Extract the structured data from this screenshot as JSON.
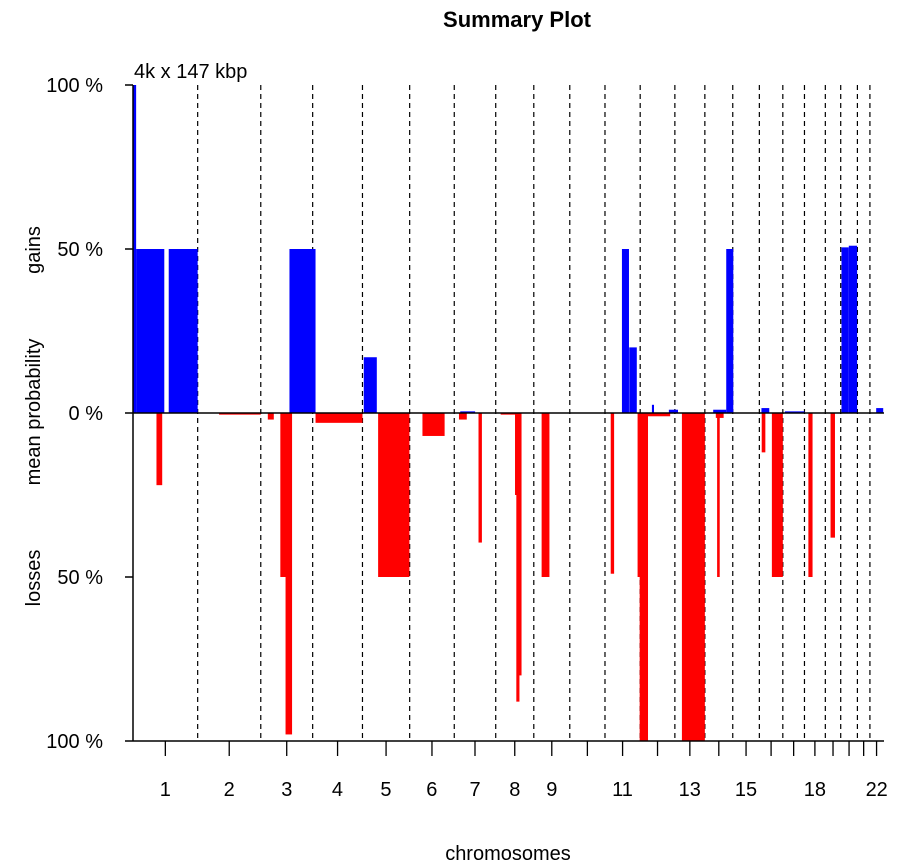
{
  "chart_data": {
    "type": "bar",
    "title": "Summary Plot",
    "annotation": "4k x 147 kbp",
    "xlabel": "chromosomes",
    "ylabel_parts": [
      "losses",
      "mean probability",
      "gains"
    ],
    "ylim": [
      -100,
      100
    ],
    "yticks": [
      {
        "value": 100,
        "label": "100 %"
      },
      {
        "value": 50,
        "label": "50 %"
      },
      {
        "value": 0,
        "label": "0 %"
      },
      {
        "value": -50,
        "label": "50 %"
      },
      {
        "value": -100,
        "label": "100 %"
      }
    ],
    "x_unit": "genome position (Mbp)",
    "xlim": [
      0,
      2880
    ],
    "chromosome_boundaries": [
      248,
      490,
      689,
      880,
      1061,
      1232,
      1391,
      1537,
      1675,
      1810,
      1945,
      2078,
      2193,
      2300,
      2402,
      2492,
      2575,
      2655,
      2714,
      2778,
      2826,
      2877
    ],
    "chromosome_labels": [
      {
        "label": "1",
        "pos": 124
      },
      {
        "label": "2",
        "pos": 369
      },
      {
        "label": "3",
        "pos": 590
      },
      {
        "label": "4",
        "pos": 784
      },
      {
        "label": "5",
        "pos": 970
      },
      {
        "label": "6",
        "pos": 1146
      },
      {
        "label": "7",
        "pos": 1312
      },
      {
        "label": "8",
        "pos": 1464
      },
      {
        "label": "9",
        "pos": 1606
      },
      {
        "label": "11",
        "pos": 1877
      },
      {
        "label": "13",
        "pos": 2135
      },
      {
        "label": "15",
        "pos": 2351
      },
      {
        "label": "18",
        "pos": 2615
      },
      {
        "label": "22",
        "pos": 2852
      }
    ],
    "series": [
      {
        "name": "gains",
        "color": "#0000ff",
        "segments": [
          {
            "start": 0,
            "end": 12,
            "value": 100
          },
          {
            "start": 12,
            "end": 120,
            "value": 50
          },
          {
            "start": 137,
            "end": 248,
            "value": 50
          },
          {
            "start": 600,
            "end": 700,
            "value": 50
          },
          {
            "start": 885,
            "end": 935,
            "value": 17
          },
          {
            "start": 1255,
            "end": 1312,
            "value": 0.5
          },
          {
            "start": 1875,
            "end": 1902,
            "value": 50
          },
          {
            "start": 1903,
            "end": 1932,
            "value": 20
          },
          {
            "start": 1990,
            "end": 1998,
            "value": 2.5
          },
          {
            "start": 2055,
            "end": 2090,
            "value": 1
          },
          {
            "start": 2225,
            "end": 2275,
            "value": 1
          },
          {
            "start": 2275,
            "end": 2302,
            "value": 50
          },
          {
            "start": 2410,
            "end": 2440,
            "value": 1.5
          },
          {
            "start": 2500,
            "end": 2575,
            "value": 0.5
          },
          {
            "start": 2717,
            "end": 2745,
            "value": 50.5
          },
          {
            "start": 2745,
            "end": 2777,
            "value": 51
          },
          {
            "start": 2850,
            "end": 2877,
            "value": 1.5
          }
        ]
      },
      {
        "name": "losses",
        "color": "#ff0000",
        "segments": [
          {
            "start": 90,
            "end": 112,
            "value": -22
          },
          {
            "start": 330,
            "end": 490,
            "value": -0.5
          },
          {
            "start": 517,
            "end": 540,
            "value": -2
          },
          {
            "start": 565,
            "end": 595,
            "value": -50
          },
          {
            "start": 585,
            "end": 610,
            "value": -98
          },
          {
            "start": 700,
            "end": 880,
            "value": -3
          },
          {
            "start": 940,
            "end": 1060,
            "value": -50
          },
          {
            "start": 1110,
            "end": 1195,
            "value": -7
          },
          {
            "start": 1250,
            "end": 1280,
            "value": -2
          },
          {
            "start": 1325,
            "end": 1338,
            "value": -39.5
          },
          {
            "start": 1410,
            "end": 1470,
            "value": -0.5
          },
          {
            "start": 1465,
            "end": 1475,
            "value": -25
          },
          {
            "start": 1470,
            "end": 1482,
            "value": -88
          },
          {
            "start": 1478,
            "end": 1490,
            "value": -80
          },
          {
            "start": 1567,
            "end": 1597,
            "value": -50
          },
          {
            "start": 1832,
            "end": 1845,
            "value": -49
          },
          {
            "start": 1935,
            "end": 1965,
            "value": -50
          },
          {
            "start": 1943,
            "end": 1975,
            "value": -100
          },
          {
            "start": 1975,
            "end": 2060,
            "value": -1
          },
          {
            "start": 2105,
            "end": 2193,
            "value": -100
          },
          {
            "start": 2240,
            "end": 2250,
            "value": -50
          },
          {
            "start": 2235,
            "end": 2265,
            "value": -1.5
          },
          {
            "start": 2411,
            "end": 2425,
            "value": -12
          },
          {
            "start": 2450,
            "end": 2492,
            "value": -50
          },
          {
            "start": 2590,
            "end": 2606,
            "value": -50
          },
          {
            "start": 2675,
            "end": 2692,
            "value": -38
          }
        ]
      }
    ],
    "grid": false
  }
}
